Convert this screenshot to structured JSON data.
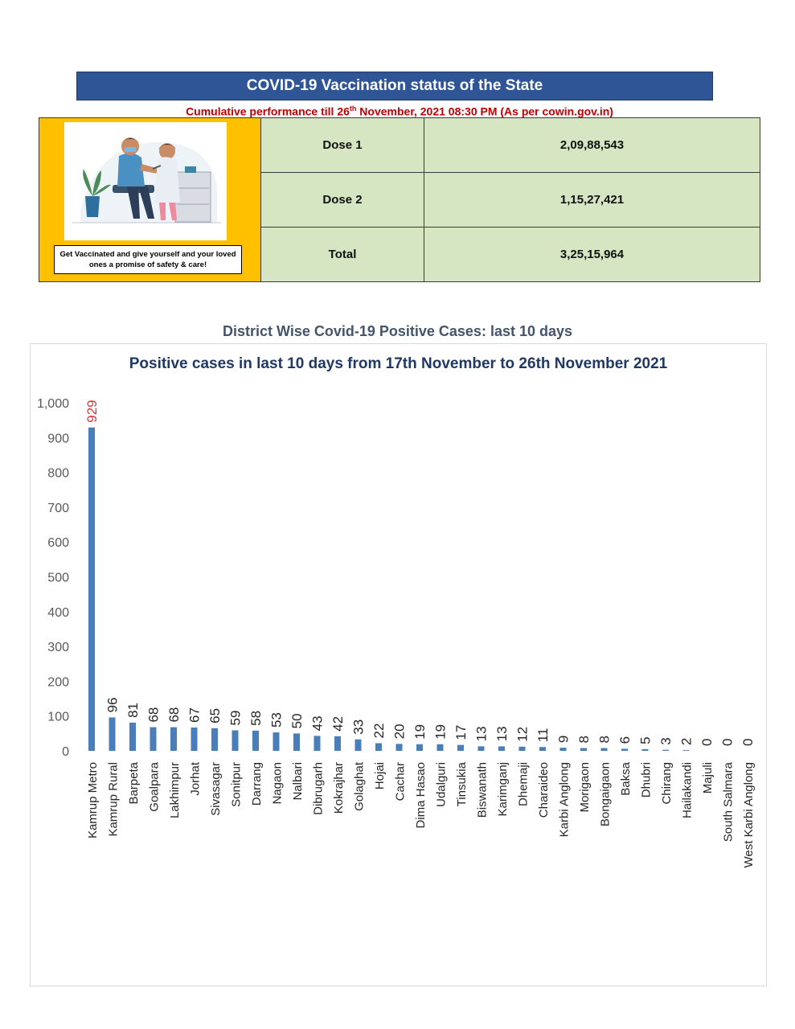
{
  "vaccination": {
    "banner_title": "COVID-19 Vaccination status of the State",
    "subtitle_before": "Cumulative performance till 26",
    "subtitle_sup": "th",
    "subtitle_after": " November, 2021 08:30 PM (As per cowin.gov.in)",
    "caption": "Get Vaccinated and give yourself and your loved ones a promise of safety & care!",
    "rows": [
      {
        "label": "Dose 1",
        "value": "2,09,88,543"
      },
      {
        "label": "Dose 2",
        "value": "1,15,27,421"
      },
      {
        "label": "Total",
        "value": "3,25,15,964"
      }
    ],
    "colors": {
      "banner": "#2f5597",
      "image_bg": "#ffc000",
      "cell_bg": "#d6e6c2",
      "subtitle": "#c00000"
    }
  },
  "section_title": "District Wise Covid-19 Positive Cases: last 10 days",
  "chart_data": {
    "type": "bar",
    "title": "Positive cases in last 10 days from 17th November to 26th November 2021",
    "xlabel": "",
    "ylabel": "",
    "ylim": [
      0,
      1000
    ],
    "yticks": [
      0,
      100,
      200,
      300,
      400,
      500,
      600,
      700,
      800,
      900,
      1000
    ],
    "ytick_labels": [
      "0",
      "100",
      "200",
      "300",
      "400",
      "500",
      "600",
      "700",
      "800",
      "900",
      "1,000"
    ],
    "grid": false,
    "bar_color": "#4a7ebb",
    "highlight_label_color": "#e03030",
    "categories": [
      "Kamrup Metro",
      "Kamrup Rural",
      "Barpeta",
      "Goalpara",
      "Lakhimpur",
      "Jorhat",
      "Sivasagar",
      "Sonitpur",
      "Darrang",
      "Nagaon",
      "Nalbari",
      "Dibrugarh",
      "Kokrajhar",
      "Golaghat",
      "Hojai",
      "Cachar",
      "Dima Hasao",
      "Udalguri",
      "Tinsukia",
      "Biswanath",
      "Karimganj",
      "Dhemaji",
      "Charaideo",
      "Karbi Anglong",
      "Morigaon",
      "Bongaigaon",
      "Baksa",
      "Dhubri",
      "Chirang",
      "Hailakandi",
      "Majuli",
      "South Salmara",
      "West Karbi Anglong"
    ],
    "values": [
      929,
      96,
      81,
      68,
      68,
      67,
      65,
      59,
      58,
      53,
      50,
      43,
      42,
      33,
      22,
      20,
      19,
      19,
      17,
      13,
      13,
      12,
      11,
      9,
      8,
      8,
      6,
      5,
      3,
      2,
      0,
      0,
      0
    ]
  }
}
